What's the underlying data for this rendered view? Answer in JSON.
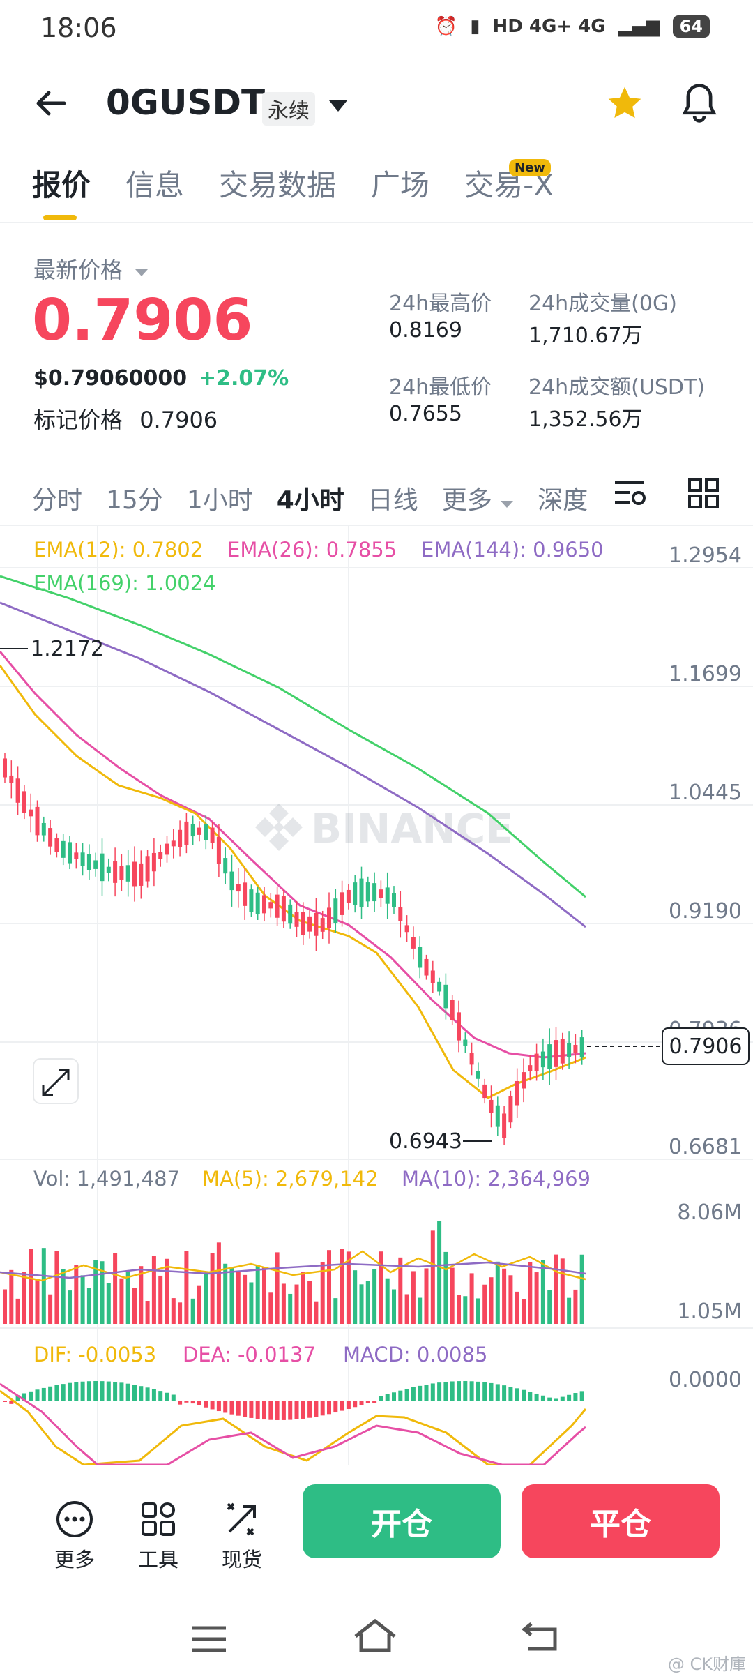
{
  "status_bar": {
    "time": "18:06",
    "icons_text": "HD 4G+ 4G",
    "battery": "64"
  },
  "header": {
    "pair": "0GUSDT",
    "contract_type": "永续"
  },
  "tabs": [
    {
      "label": "报价",
      "active": true
    },
    {
      "label": "信息"
    },
    {
      "label": "交易数据"
    },
    {
      "label": "广场"
    },
    {
      "label": "交易-X"
    }
  ],
  "new_badge": "New",
  "price": {
    "last_label": "最新价格",
    "last_price": "0.7906",
    "usd_price": "$0.79060000",
    "change": "+2.07%",
    "mark_label": "标记价格",
    "mark_price": "0.7906"
  },
  "stats": {
    "high_label": "24h最高价",
    "high": "0.8169",
    "low_label": "24h最低价",
    "low": "0.7655",
    "vol_label": "24h成交量(0G)",
    "vol": "1,710.67万",
    "amt_label": "24h成交额(USDT)",
    "amt": "1,352.56万"
  },
  "intervals": [
    {
      "label": "分时"
    },
    {
      "label": "15分"
    },
    {
      "label": "1小时"
    },
    {
      "label": "4小时",
      "active": true
    },
    {
      "label": "日线"
    },
    {
      "label": "更多"
    },
    {
      "label": "深度"
    }
  ],
  "chart_data": {
    "type": "candlestick",
    "indicators": {
      "ema12": "EMA(12): 0.7802",
      "ema26": "EMA(26): 0.7855",
      "ema144": "EMA(144): 0.9650",
      "ema169": "EMA(169): 1.0024"
    },
    "y_axis_labels": [
      "1.2954",
      "1.1699",
      "1.0445",
      "0.9190",
      "0.7936",
      "0.6681"
    ],
    "ylim": [
      0.6681,
      1.2954
    ],
    "current_price_tag": "0.7906",
    "high_marker": "1.2172",
    "low_marker": "0.6943",
    "watermark": "BINANCE",
    "volume": {
      "vol": "Vol: 1,491,487",
      "ma5": "MA(5): 2,679,142",
      "ma10": "MA(10): 2,364,969",
      "axis_top": "8.06M",
      "axis_bottom": "1.05M"
    },
    "macd": {
      "dif": "DIF: -0.0053",
      "dea": "DEA: -0.0137",
      "macd": "MACD: 0.0085",
      "axis": "0.0000"
    },
    "colors": {
      "up": "#2ebd85",
      "down": "#f6465d",
      "ema12": "#f0b90b",
      "ema26": "#e64fa5",
      "ema144": "#8e6bc4",
      "ema169": "#43d16a"
    }
  },
  "bottom": {
    "more": "更多",
    "tools": "工具",
    "spot": "现货",
    "open": "开仓",
    "close": "平仓"
  },
  "watermark_corner": "@ CK财庫"
}
